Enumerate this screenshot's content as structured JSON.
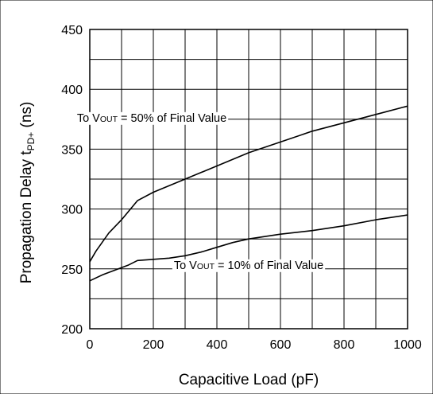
{
  "chart_data": {
    "type": "line",
    "title": "",
    "xlabel": "Capacitive Load (pF)",
    "ylabel_parts": {
      "main": "Propagation Delay ",
      "symbol": "t",
      "subscript": "PD+",
      "unit": " (ns)"
    },
    "xlim": [
      0,
      1000
    ],
    "ylim": [
      200,
      450
    ],
    "x_ticks": [
      0,
      200,
      400,
      600,
      800,
      1000
    ],
    "x_tick_labels": [
      "0",
      "200",
      "400",
      "600",
      "800",
      "1000"
    ],
    "y_ticks": [
      200,
      250,
      300,
      350,
      400,
      450
    ],
    "y_tick_labels": [
      "200",
      "250",
      "300",
      "350",
      "400",
      "450"
    ],
    "grid": true,
    "grid_minor": true,
    "series": [
      {
        "x": [
          0,
          20,
          60,
          100,
          150,
          200,
          300,
          400,
          500,
          600,
          700,
          800,
          900,
          1000
        ],
        "y": [
          256,
          265,
          280,
          291,
          307,
          314,
          325,
          336,
          347,
          356,
          365,
          372,
          379,
          386
        ]
      },
      {
        "x": [
          0,
          40,
          80,
          120,
          150,
          200,
          250,
          300,
          350,
          400,
          450,
          500,
          600,
          700,
          800,
          900,
          1000
        ],
        "y": [
          240,
          245,
          249,
          253,
          257,
          258,
          259,
          261,
          264,
          268,
          272,
          275,
          279,
          282,
          286,
          291,
          295
        ]
      }
    ],
    "annotations": [
      {
        "prefix": "To V",
        "sub": "OUT",
        "suffix": " = 50% of Final Value",
        "anchor_x": 195,
        "anchor_y": 373
      },
      {
        "prefix": "To V",
        "sub": "OUT",
        "suffix": " = 10% of Final Value",
        "anchor_x": 500,
        "anchor_y": 250
      }
    ]
  }
}
